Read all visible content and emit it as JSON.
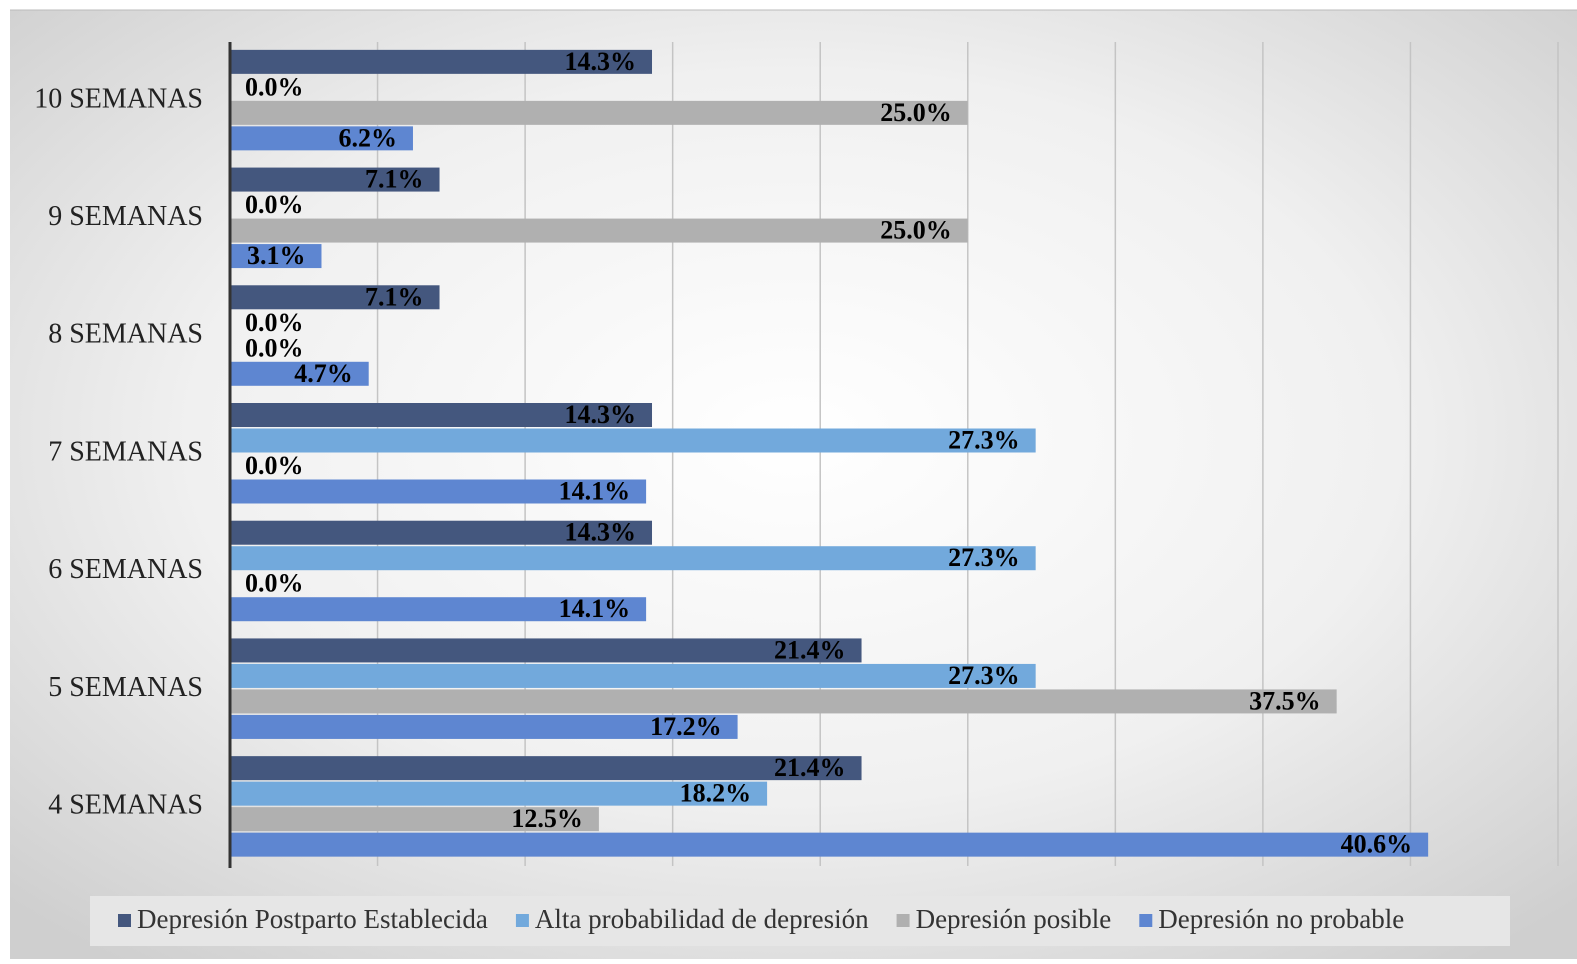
{
  "chart_data": {
    "type": "hbar",
    "categories": [
      "10 SEMANAS",
      "9 SEMANAS",
      "8 SEMANAS",
      "7 SEMANAS",
      "6 SEMANAS",
      "5 SEMANAS",
      "4 SEMANAS"
    ],
    "series": [
      {
        "name": "Depresión Postparto Establecida",
        "color": "#44577e",
        "values": [
          14.3,
          7.1,
          7.1,
          14.3,
          14.3,
          21.4,
          21.4
        ],
        "value_labels": [
          "14.3%",
          "7.1%",
          "7.1%",
          "14.3%",
          "14.3%",
          "21.4%",
          "21.4%"
        ]
      },
      {
        "name": "Alta probabilidad de depresión",
        "color": "#72a9dc",
        "values": [
          0.0,
          0.0,
          0.0,
          27.3,
          27.3,
          27.3,
          18.2
        ],
        "value_labels": [
          "0.0%",
          "0.0%",
          "0.0%",
          "27.3%",
          "27.3%",
          "27.3%",
          "18.2%"
        ]
      },
      {
        "name": "Depresión posible",
        "color": "#b0b0b0",
        "values": [
          25.0,
          25.0,
          0.0,
          0.0,
          0.0,
          37.5,
          12.5
        ],
        "value_labels": [
          "25.0%",
          "25.0%",
          "0.0%",
          "0.0%",
          "0.0%",
          "37.5%",
          "12.5%"
        ]
      },
      {
        "name": "Depresión no probable",
        "color": "#5e86d1",
        "values": [
          6.2,
          3.1,
          4.7,
          14.1,
          14.1,
          17.2,
          40.6
        ],
        "value_labels": [
          "6.2%",
          "3.1%",
          "4.7%",
          "14.1%",
          "14.1%",
          "17.2%",
          "40.6%"
        ]
      }
    ],
    "xlim": [
      0,
      45
    ],
    "xticks": [
      0,
      5,
      10,
      15,
      20,
      25,
      30,
      35,
      40,
      45
    ],
    "grid": true,
    "legend": "bottom"
  }
}
